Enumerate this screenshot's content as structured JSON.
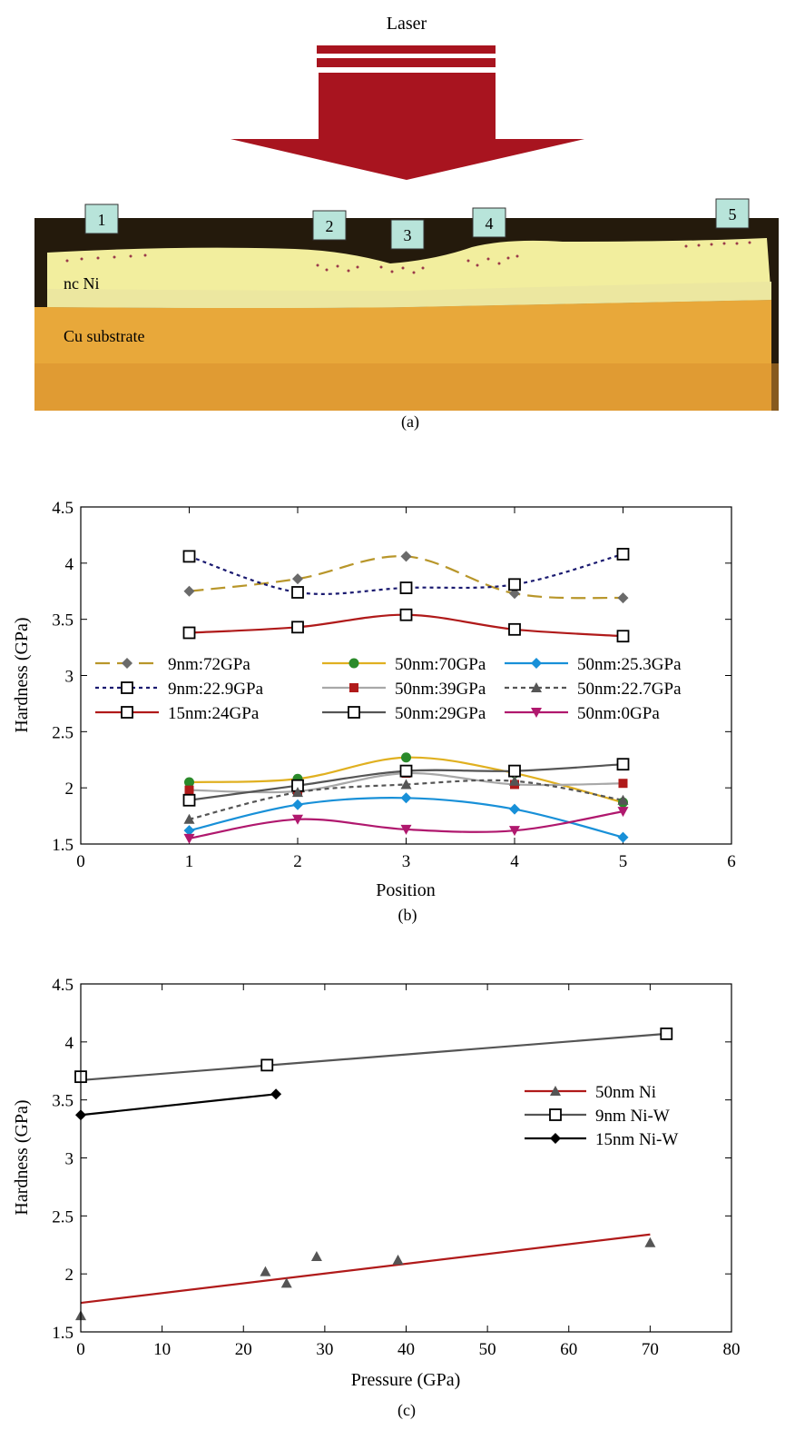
{
  "panel_a": {
    "laser_label": "Laser",
    "layer_label": "nc Ni",
    "substrate_label": "Cu substrate",
    "markers": [
      "1",
      "2",
      "3",
      "4",
      "5"
    ],
    "caption": "(a)",
    "colors": {
      "arrow": "#a8141f",
      "nickel": "#f2ee9e",
      "copper": "#e8a83a",
      "marker_box": "#b8e4da"
    }
  },
  "chart_data": [
    {
      "type": "line",
      "caption": "(b)",
      "title": "",
      "xlabel": "Position",
      "ylabel": "Hardness (GPa)",
      "xlim": [
        0,
        6
      ],
      "ylim": [
        1.5,
        4.5
      ],
      "xticks": [
        0,
        1,
        2,
        3,
        4,
        5,
        6
      ],
      "yticks": [
        1.5,
        2,
        2.5,
        3,
        3.5,
        4,
        4.5
      ],
      "legend_position": "center-left, three columns",
      "x": [
        1,
        2,
        3,
        4,
        5
      ],
      "series": [
        {
          "name": "9nm:72GPa",
          "values": [
            3.75,
            3.86,
            4.06,
            3.73,
            3.69
          ],
          "color": "#b8962a",
          "dash": "long-dash",
          "marker": "diamond-filled",
          "marker_color": "#6a6a6a"
        },
        {
          "name": "9nm:22.9GPa",
          "values": [
            4.06,
            3.74,
            3.78,
            3.81,
            4.08
          ],
          "color": "#1a1a70",
          "dash": "dotted",
          "marker": "square-open",
          "marker_color": "#000000"
        },
        {
          "name": "15nm:24GPa",
          "values": [
            3.38,
            3.43,
            3.54,
            3.41,
            3.35
          ],
          "color": "#b01a1a",
          "dash": "solid",
          "marker": "square-open",
          "marker_color": "#000000"
        },
        {
          "name": "50nm:70GPa",
          "values": [
            2.05,
            2.08,
            2.27,
            2.13,
            1.87
          ],
          "color": "#e0b020",
          "dash": "solid",
          "marker": "circle-filled",
          "marker_color": "#2a8a2a"
        },
        {
          "name": "50nm:39GPa",
          "values": [
            1.98,
            1.97,
            2.13,
            2.03,
            2.04
          ],
          "color": "#a8a8a8",
          "dash": "solid",
          "marker": "square-filled",
          "marker_color": "#b01a1a"
        },
        {
          "name": "50nm:29GPa",
          "values": [
            1.89,
            2.02,
            2.15,
            2.15,
            2.21
          ],
          "color": "#555555",
          "dash": "solid",
          "marker": "square-open",
          "marker_color": "#000000"
        },
        {
          "name": "50nm:25.3GPa",
          "values": [
            1.62,
            1.85,
            1.91,
            1.81,
            1.56
          ],
          "color": "#1890d8",
          "dash": "solid",
          "marker": "diamond-filled",
          "marker_color": "#1890d8"
        },
        {
          "name": "50nm:22.7GPa",
          "values": [
            1.72,
            1.96,
            2.03,
            2.06,
            1.89
          ],
          "color": "#555555",
          "dash": "dashed",
          "marker": "triangle-up-filled",
          "marker_color": "#555555"
        },
        {
          "name": "50nm:0GPa",
          "values": [
            1.55,
            1.72,
            1.63,
            1.62,
            1.79
          ],
          "color": "#b0186e",
          "dash": "solid",
          "marker": "triangle-down-filled",
          "marker_color": "#b0186e"
        }
      ]
    },
    {
      "type": "scatter",
      "caption": "(c)",
      "title": "",
      "xlabel": "Pressure (GPa)",
      "ylabel": "Hardness (GPa)",
      "xlim": [
        0,
        80
      ],
      "ylim": [
        1.5,
        4.5
      ],
      "xticks": [
        0,
        10,
        20,
        30,
        40,
        50,
        60,
        70,
        80
      ],
      "yticks": [
        1.5,
        2,
        2.5,
        3,
        3.5,
        4,
        4.5
      ],
      "legend_position": "center-right",
      "series": [
        {
          "name": "50nm Ni",
          "x": [
            0,
            22.7,
            25.3,
            29,
            39,
            70
          ],
          "y": [
            1.64,
            2.02,
            1.92,
            2.15,
            2.12,
            2.27
          ],
          "color": "#b01a1a",
          "marker": "triangle-up-filled",
          "marker_color": "#555555",
          "fit": {
            "x": [
              0,
              70
            ],
            "y": [
              1.75,
              2.34
            ]
          }
        },
        {
          "name": "9nm Ni-W",
          "x": [
            0,
            22.9,
            72
          ],
          "y": [
            3.7,
            3.8,
            4.07
          ],
          "color": "#555555",
          "marker": "square-open",
          "marker_color": "#000000",
          "fit": {
            "x": [
              0,
              72
            ],
            "y": [
              3.67,
              4.07
            ]
          }
        },
        {
          "name": "15nm Ni-W",
          "x": [
            0,
            24
          ],
          "y": [
            3.37,
            3.55
          ],
          "color": "#000000",
          "marker": "diamond-filled",
          "marker_color": "#000000",
          "fit": {
            "x": [
              0,
              24
            ],
            "y": [
              3.37,
              3.55
            ]
          }
        }
      ]
    }
  ]
}
